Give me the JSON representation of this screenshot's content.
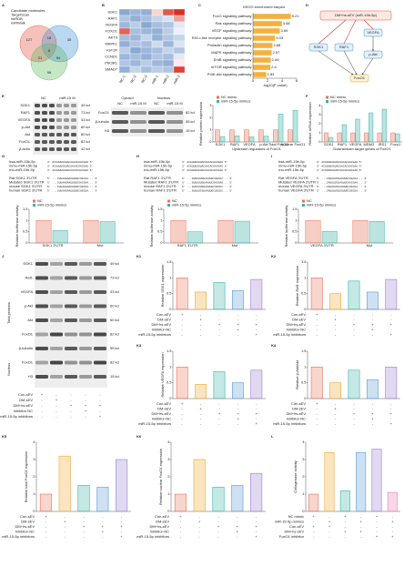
{
  "panel_labels": [
    "A",
    "B",
    "C",
    "D",
    "E",
    "F",
    "G",
    "H",
    "I",
    "J",
    "K1",
    "K2",
    "K3",
    "K4",
    "K5",
    "K6",
    "L"
  ],
  "a": {
    "legend": [
      "Candidate molecules",
      "TargetScan",
      "miRDB",
      "miRWalk"
    ],
    "counts": [
      "127",
      "35",
      "96",
      "8",
      "18",
      "21",
      "54"
    ]
  },
  "b": {
    "rows": [
      "SGK1",
      "RAF1",
      "VEGFA",
      "FOXO1",
      "AKT3",
      "MAPK1",
      "IGF1R",
      "CCND1",
      "PIK3R1",
      "SMAD7"
    ],
    "columns": [
      "NC-1",
      "NC-2",
      "NC-3",
      "miR-1",
      "miR-2",
      "miR-3"
    ],
    "values": [
      [
        -1.2,
        -1.0,
        -1.1,
        0.4,
        1.6,
        2.0
      ],
      [
        -0.8,
        -1.1,
        -0.9,
        -0.6,
        -0.4,
        0.9
      ],
      [
        -1.0,
        -0.7,
        -1.2,
        -0.9,
        -0.8,
        -0.3
      ],
      [
        1.5,
        -0.9,
        -1.0,
        -1.1,
        -0.7,
        -0.2
      ],
      [
        -0.9,
        -1.0,
        -0.6,
        -1.1,
        -0.8,
        -0.6
      ],
      [
        -1.1,
        -0.8,
        -0.9,
        -0.5,
        -1.0,
        -0.4
      ],
      [
        -0.7,
        -1.2,
        -1.0,
        -0.9,
        -0.6,
        -0.8
      ],
      [
        -1.0,
        -0.9,
        -1.1,
        -0.8,
        -0.9,
        -0.3
      ],
      [
        -0.8,
        -1.0,
        -0.7,
        -1.0,
        -1.1,
        0.2
      ],
      [
        -1.1,
        -0.6,
        -0.9,
        -0.7,
        -0.8,
        1.8
      ]
    ]
  },
  "c": {
    "type": "hbar",
    "title": "KEGG enrichment barplot",
    "categories": [
      "FoxO signaling pathway",
      "Ras signaling pathway",
      "VEGF signaling pathway",
      "RIG-I-like receptor signaling pathway",
      "Prolactin signaling pathway",
      "MAPK signaling pathway",
      "ErbB signaling pathway",
      "mTOR signaling pathway",
      "PI3K-Akt signaling pathway"
    ],
    "values": [
      5.21,
      3.98,
      3.69,
      3.03,
      2.68,
      2.57,
      2.44,
      2.4,
      1.83
    ],
    "color": "#f5b13d",
    "xlim": [
      0,
      6
    ],
    "xticks": [
      0,
      2,
      4,
      6
    ],
    "xlabel": "-log10(P value)"
  },
  "d": {
    "source": "DM+hs-sEV (miR-15b-5p)",
    "nodes": [
      "SGK1",
      "RAF1",
      "VEGFA",
      "p-Akt",
      "FoxO1"
    ]
  },
  "e": {
    "columns": [
      "NC",
      "miR-15 M"
    ],
    "rows": [
      {
        "name": "SGK1",
        "kda": "49 kd"
      },
      {
        "name": "RAF1",
        "kda": "73 kd"
      },
      {
        "name": "VEGFA",
        "kda": "43 kd"
      },
      {
        "name": "p-Akt",
        "kda": "60 kd"
      },
      {
        "name": "Akt",
        "kda": "60 kd"
      },
      {
        "name": "FoxO1",
        "kda": "82 kd"
      },
      {
        "name": "β-actin",
        "kda": "42 kd"
      }
    ],
    "fractions": [
      "Cytosol",
      "Nucleus"
    ],
    "fraction_columns": [
      "NC",
      "miR-15 M",
      "NC",
      "miR-15 M"
    ],
    "fraction_rows": [
      {
        "name": "FoxO1",
        "kda": "82 kd"
      },
      {
        "name": "β-tubulin",
        "kda": "55 kd"
      },
      {
        "name": "H3",
        "kda": "15 kd"
      }
    ],
    "chart": {
      "type": "bar",
      "ylabel": "Relative protein expression",
      "xlabel": "Upstream regulators of FoxO1",
      "categories": [
        "SGK1",
        "RAF1",
        "VEGFA",
        "p-Akt",
        "Total FoxO1",
        "Nuclear FoxO1"
      ],
      "series": [
        {
          "name": "NC mimic",
          "color": "#e8735a",
          "values": [
            1,
            1,
            1,
            1,
            1,
            1
          ]
        },
        {
          "name": "miR-15-5p mimics",
          "color": "#3bb3a6",
          "values": [
            0.45,
            0.5,
            0.42,
            0.48,
            2.3,
            2.6
          ]
        }
      ],
      "ylim": [
        0,
        3
      ],
      "yticks": [
        0,
        1,
        2,
        3
      ]
    }
  },
  "f": {
    "type": "bar",
    "ylabel": "Relative mRNA expression",
    "xlabel": "Downstream target genes of FoxO1",
    "categories": [
      "SGK1",
      "RAF1",
      "VEGFA",
      "MDM2",
      "IRS1",
      "Foxo1"
    ],
    "series": [
      {
        "name": "NC mimic",
        "color": "#e8735a",
        "values": [
          1,
          1,
          1,
          1,
          1,
          1
        ]
      },
      {
        "name": "miR-15-5p mimics",
        "color": "#3bb3a6",
        "values": [
          0.5,
          1.9,
          2.5,
          3.2,
          3.6,
          0.9
        ]
      }
    ],
    "ylim": [
      0,
      4
    ],
    "yticks": [
      0,
      1,
      2,
      3,
      4
    ]
  },
  "g": {
    "mirna": [
      {
        "name": "hsa-miR-15b-5p",
        "seq": "3' ACAUUUGGUACUACACGACGAU 5'"
      },
      {
        "name": "mmu-miR-15b-5p",
        "seq": "3' ACAUUUGGUACUACACGACGAU 5'"
      },
      {
        "name": "rno-miR-15b-5p",
        "seq": "3' ACAUUUGGUACUACACGACGAU 5'"
      }
    ],
    "utr": [
      {
        "name": "Rat SGK1 3'UTR",
        "seq": "5' ...CUUAAGAAUUUUGCUGCUA... 3'"
      },
      {
        "name": "Mutated SGK1 3'UTR",
        "seq": "5' ...CUUAAGAAUUUUCGACGAA... 3'"
      },
      {
        "name": "mouse SGK1 3'UTR",
        "seq": "5' ...CUUAAGAAUUUUGCUGCUA... 3'"
      },
      {
        "name": "human SGK1 3'UTR",
        "seq": "5' ...CUUGAGAAUUUUGCUGCUA... 3'"
      }
    ],
    "chart": {
      "type": "bar",
      "ylabel": "Relative luciferase activity",
      "categories": [
        "SGK1 3'UTR",
        "Mut"
      ],
      "series": [
        {
          "name": "NC",
          "color": "#e8735a",
          "values": [
            1,
            1
          ]
        },
        {
          "name": "miR-15-5p mimics",
          "color": "#3bb3a6",
          "values": [
            0.55,
            0.95
          ]
        }
      ],
      "ylim": [
        0,
        1.5
      ],
      "yticks": [
        0,
        0.5,
        1,
        1.5
      ]
    }
  },
  "h": {
    "mirna": [
      {
        "name": "hsa-miR-15b-5p",
        "seq": "3' ACAUUUGGUACUACACGACGAU 5'"
      },
      {
        "name": "mmu-miR-15b-5p",
        "seq": "3' ACAUUUGGUACUACACGACGAU 5'"
      },
      {
        "name": "rno-miR-15b-5p",
        "seq": "3' ACAUUUGGUACUACACGACGAU 5'"
      }
    ],
    "utr": [
      {
        "name": "Rat RAF1 3'UTR",
        "seq": "5' ...GUUUUUGUAAUUGCUGCUC... 3'"
      },
      {
        "name": "Mutated RAF1 3'UTR",
        "seq": "5' ...GUUUUUGUAAUUCGACGAG... 3'"
      },
      {
        "name": "mouse RAF1 3'UTR",
        "seq": "5' ...GUUUUUGUAAUUGCUGCUC... 3'"
      },
      {
        "name": "human RAF1 3'UTR",
        "seq": "5' ...GUUUUCGUAAUUGCUGCUC... 3'"
      }
    ],
    "chart": {
      "type": "bar",
      "ylabel": "Relative luciferase activity",
      "categories": [
        "RAF1 3'UTR",
        "Mut"
      ],
      "series": [
        {
          "name": "NC",
          "color": "#e8735a",
          "values": [
            1,
            1
          ]
        },
        {
          "name": "miR-15-5p mimics",
          "color": "#3bb3a6",
          "values": [
            0.5,
            0.97
          ]
        }
      ],
      "ylim": [
        0,
        1.5
      ],
      "yticks": [
        0,
        0.5,
        1,
        1.5
      ]
    }
  },
  "i": {
    "mirna": [
      {
        "name": "hsa-miR-15b-5p",
        "seq": "3' ACAUUUGGUACUACACGACGAU 5'"
      },
      {
        "name": "mmu-miR-15b-5p",
        "seq": "3' ACAUUUGGUACUACACGACGAU 5'"
      },
      {
        "name": "rno-miR-15b-5p",
        "seq": "3' ACAUUUGGUACUACACGACGAU 5'"
      }
    ],
    "utr": [
      {
        "name": "Rat VEGFA 3'UTR",
        "seq": "5' ...CAUUUUCUAUUUGCUGCUA... 3'"
      },
      {
        "name": "Mutated VEGFA 3'UTR",
        "seq": "5' ...CAUUUUCUAUUUCGACGAA... 3'"
      },
      {
        "name": "mouse VEGFA 3'UTR",
        "seq": "5' ...CAUUUUCUAUUUGCUGCUA... 3'"
      },
      {
        "name": "human VEGFA 3'UTR",
        "seq": "5' ...CAUUUUCUGUUUGCUGCUA... 3'"
      }
    ],
    "chart": {
      "type": "bar",
      "ylabel": "Relative luciferase activity",
      "categories": [
        "VEGFA 3'UTR",
        "Mut"
      ],
      "series": [
        {
          "name": "NC",
          "color": "#e8735a",
          "values": [
            1,
            1
          ]
        },
        {
          "name": "miR-15-5p mimics",
          "color": "#3bb3a6",
          "values": [
            0.52,
            0.96
          ]
        }
      ],
      "ylim": [
        0,
        1.5
      ],
      "yticks": [
        0,
        0.5,
        1,
        1.5
      ]
    }
  },
  "j": {
    "rows": [
      {
        "name": "SGK1",
        "kda": "49 kd"
      },
      {
        "name": "Raf1",
        "kda": "73 kd"
      },
      {
        "name": "VEGFA",
        "kda": "43 kd"
      },
      {
        "name": "p-Akt",
        "kda": "60 kd"
      },
      {
        "name": "Akt",
        "kda": "60 kd"
      },
      {
        "name": "FoxO1",
        "kda": "82 kd"
      },
      {
        "name": "β-tubulin",
        "kda": "55 kd"
      },
      {
        "name": "FoxO1",
        "kda": "82 kd"
      },
      {
        "name": "H3",
        "kda": "15 kd"
      }
    ],
    "sides": [
      "Total proteins",
      "Nucleus"
    ]
  },
  "conditions": {
    "rows": [
      "Con-sEV",
      "DM-sEV",
      "DM+hs-sEV",
      "Inhibitor-NC",
      "miR-15-5p inhibitors"
    ],
    "marks": [
      [
        "+",
        "-",
        "-",
        "-",
        "-"
      ],
      [
        "-",
        "+",
        "-",
        "-",
        "-"
      ],
      [
        "-",
        "-",
        "+",
        "+",
        "+"
      ],
      [
        "-",
        "-",
        "-",
        "+",
        "-"
      ],
      [
        "-",
        "-",
        "-",
        "-",
        "+"
      ]
    ]
  },
  "k_colors": [
    "#e8735a",
    "#f0a830",
    "#3bb3a6",
    "#5b9bd5",
    "#9b7fd1"
  ],
  "k1": {
    "type": "bar",
    "ylabel": "Relative SGK1 expression",
    "values": [
      1,
      0.55,
      0.85,
      0.6,
      0.95
    ],
    "ylim": [
      0,
      1.5
    ],
    "yticks": [
      0,
      0.5,
      1,
      1.5
    ]
  },
  "k2": {
    "type": "bar",
    "ylabel": "Relative Raf1 expression",
    "values": [
      1,
      0.5,
      0.9,
      0.55,
      0.95
    ],
    "ylim": [
      0,
      1.5
    ],
    "yticks": [
      0,
      0.5,
      1,
      1.5
    ]
  },
  "k3": {
    "type": "bar",
    "ylabel": "Relative VEGFA expression",
    "values": [
      1,
      0.45,
      0.85,
      0.5,
      0.9
    ],
    "ylim": [
      0,
      1.5
    ],
    "yticks": [
      0,
      0.5,
      1,
      1.5
    ]
  },
  "k4": {
    "type": "bar",
    "ylabel": "Relative p-Akt/Akt",
    "values": [
      1,
      0.5,
      0.9,
      0.6,
      1.0
    ],
    "ylim": [
      0,
      1.5
    ],
    "yticks": [
      0,
      0.5,
      1,
      1.5
    ]
  },
  "k5": {
    "type": "bar",
    "ylabel": "Relative total FoxO1 expression",
    "values": [
      1,
      3.2,
      1.5,
      1.4,
      3.0
    ],
    "ylim": [
      0,
      4
    ],
    "yticks": [
      0,
      1,
      2,
      3,
      4
    ]
  },
  "k6": {
    "type": "bar",
    "ylabel": "Relative nuclear FoxO1 expression",
    "values": [
      1,
      3.0,
      1.4,
      1.5,
      2.2
    ],
    "ylim": [
      0,
      4
    ],
    "yticks": [
      0,
      1,
      2,
      3,
      4
    ]
  },
  "l": {
    "type": "bar",
    "ylabel": "Collagenase activity",
    "values": [
      1,
      3.4,
      1.2,
      3.4,
      3.6,
      1.1
    ],
    "colors": [
      "#e8735a",
      "#f0a830",
      "#3bb3a6",
      "#5b9bd5",
      "#9b7fd1",
      "#e87fb0"
    ],
    "ylim": [
      0,
      4
    ],
    "yticks": [
      0,
      1,
      2,
      3,
      4
    ],
    "conditions": {
      "rows": [
        "NC mimic",
        "miR-15-5p mimics",
        "Con-sEV",
        "DM+hs-sEV",
        "FoxO1 inhibitor"
      ],
      "marks": [
        [
          "+",
          "-",
          "+",
          "-",
          "+",
          "-"
        ],
        [
          "-",
          "+",
          "-",
          "+",
          "-",
          "+"
        ],
        [
          "+",
          "+",
          "-",
          "-",
          "-",
          "-"
        ],
        [
          "-",
          "-",
          "+",
          "+",
          "-",
          "-"
        ],
        [
          "-",
          "-",
          "-",
          "-",
          "+",
          "+"
        ]
      ]
    }
  }
}
